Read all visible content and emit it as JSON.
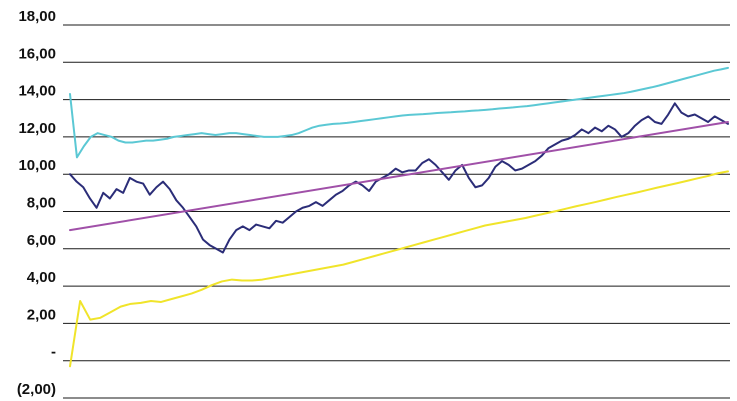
{
  "chart_data": {
    "type": "line",
    "title": "",
    "xlabel": "",
    "ylabel": "",
    "ylim": [
      -2,
      18
    ],
    "yticks": [
      -2,
      0,
      2,
      4,
      6,
      8,
      10,
      12,
      14,
      16,
      18
    ],
    "ytick_labels": [
      "(2,00)",
      "-",
      "2,00",
      "4,00",
      "6,00",
      "8,00",
      "10,00",
      "12,00",
      "14,00",
      "16,00",
      "18,00"
    ],
    "grid": true,
    "legend": "none",
    "x_points": 200,
    "series": [
      {
        "color": "#5bc8d4",
        "values": [
          14.3,
          10.9,
          11.5,
          12.0,
          12.2,
          12.1,
          12.0,
          11.8,
          11.7,
          11.7,
          11.75,
          11.8,
          11.8,
          11.85,
          11.9,
          12.0,
          12.05,
          12.1,
          12.15,
          12.2,
          12.15,
          12.1,
          12.15,
          12.2,
          12.2,
          12.15,
          12.1,
          12.05,
          12.0,
          12.0,
          12.0,
          12.05,
          12.1,
          12.2,
          12.35,
          12.5,
          12.6,
          12.65,
          12.7,
          12.72,
          12.75,
          12.8,
          12.85,
          12.9,
          12.95,
          13.0,
          13.05,
          13.1,
          13.15,
          13.18,
          13.2,
          13.22,
          13.25,
          13.28,
          13.3,
          13.32,
          13.35,
          13.37,
          13.4,
          13.42,
          13.45,
          13.48,
          13.52,
          13.55,
          13.58,
          13.62,
          13.65,
          13.7,
          13.75,
          13.8,
          13.85,
          13.9,
          13.95,
          14.0,
          14.05,
          14.1,
          14.15,
          14.2,
          14.25,
          14.3,
          14.35,
          14.42,
          14.5,
          14.58,
          14.66,
          14.75,
          14.85,
          14.95,
          15.05,
          15.15,
          15.25,
          15.35,
          15.45,
          15.55,
          15.62,
          15.7
        ]
      },
      {
        "color": "#2b2d78",
        "values": [
          10.0,
          9.6,
          9.3,
          8.7,
          8.2,
          9.0,
          8.7,
          9.2,
          9.0,
          9.8,
          9.6,
          9.5,
          8.9,
          9.3,
          9.6,
          9.2,
          8.6,
          8.2,
          7.7,
          7.2,
          6.5,
          6.2,
          6.0,
          5.8,
          6.5,
          7.0,
          7.2,
          7.0,
          7.3,
          7.2,
          7.1,
          7.5,
          7.4,
          7.7,
          8.0,
          8.2,
          8.3,
          8.5,
          8.3,
          8.6,
          8.9,
          9.1,
          9.4,
          9.6,
          9.4,
          9.1,
          9.6,
          9.8,
          10.0,
          10.3,
          10.1,
          10.2,
          10.2,
          10.6,
          10.8,
          10.5,
          10.1,
          9.7,
          10.2,
          10.5,
          9.8,
          9.3,
          9.4,
          9.8,
          10.4,
          10.7,
          10.5,
          10.2,
          10.3,
          10.5,
          10.7,
          11.0,
          11.4,
          11.6,
          11.8,
          11.9,
          12.1,
          12.4,
          12.2,
          12.5,
          12.3,
          12.6,
          12.4,
          12.0,
          12.2,
          12.6,
          12.9,
          13.1,
          12.8,
          12.7,
          13.2,
          13.8,
          13.3,
          13.1,
          13.2,
          13.0,
          12.8,
          13.1,
          12.9,
          12.7
        ]
      },
      {
        "color": "#a050a8",
        "values": [
          7.0,
          12.8
        ]
      },
      {
        "color": "#f0e42a",
        "values": [
          -0.3,
          3.2,
          2.2,
          2.3,
          2.6,
          2.9,
          3.05,
          3.1,
          3.2,
          3.15,
          3.3,
          3.45,
          3.6,
          3.8,
          4.05,
          4.25,
          4.35,
          4.3,
          4.3,
          4.35,
          4.45,
          4.55,
          4.65,
          4.75,
          4.85,
          4.95,
          5.05,
          5.15,
          5.3,
          5.45,
          5.6,
          5.75,
          5.9,
          6.05,
          6.2,
          6.35,
          6.5,
          6.65,
          6.8,
          6.95,
          7.1,
          7.25,
          7.35,
          7.45,
          7.55,
          7.65,
          7.78,
          7.9,
          8.02,
          8.15,
          8.28,
          8.4,
          8.52,
          8.65,
          8.78,
          8.9,
          9.02,
          9.15,
          9.28,
          9.4,
          9.52,
          9.65,
          9.78,
          9.9,
          10.05,
          10.15
        ]
      }
    ]
  }
}
